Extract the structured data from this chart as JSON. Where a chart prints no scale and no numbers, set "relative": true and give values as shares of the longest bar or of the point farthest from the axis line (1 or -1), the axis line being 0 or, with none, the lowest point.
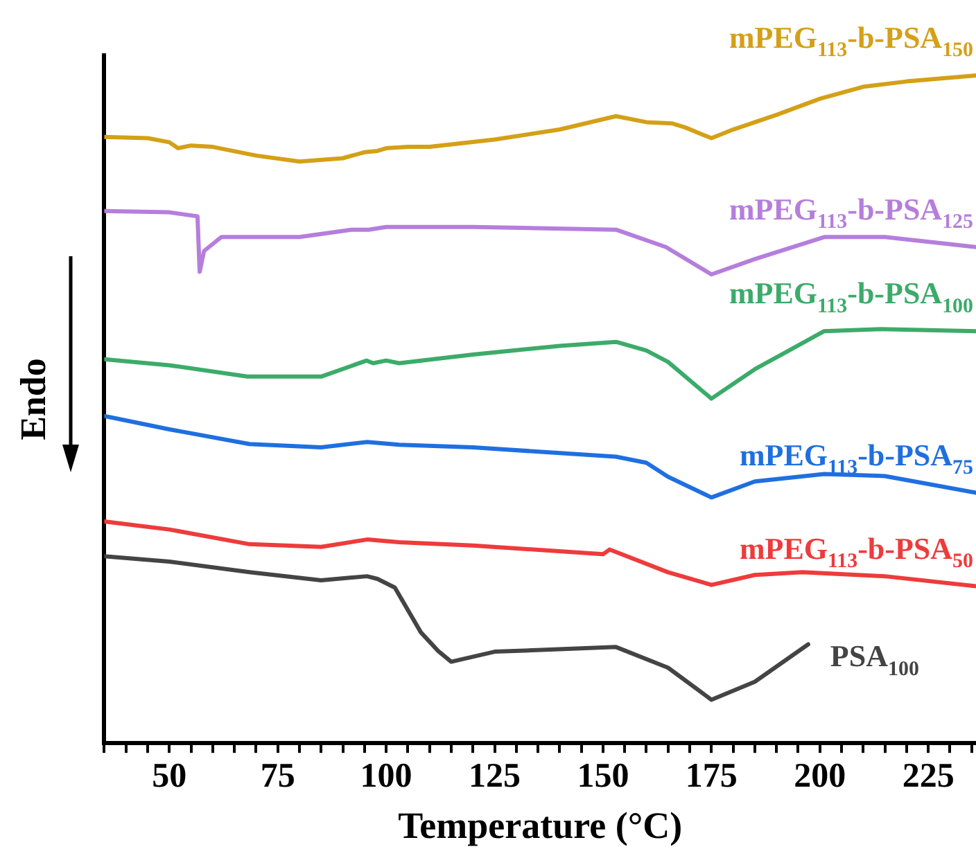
{
  "chart_data": {
    "type": "line",
    "relative": true,
    "xlabel": "Temperature (°C)",
    "ylabel": "Endo",
    "xlim": [
      35,
      236
    ],
    "xticks": [
      {
        "value": 35,
        "label": null
      },
      {
        "value": 40,
        "label": null
      },
      {
        "value": 45,
        "label": null
      },
      50,
      {
        "value": 55,
        "label": null
      },
      {
        "value": 60,
        "label": null
      },
      {
        "value": 65,
        "label": null
      },
      {
        "value": 70,
        "label": null
      },
      75,
      {
        "value": 80,
        "label": null
      },
      {
        "value": 85,
        "label": null
      },
      {
        "value": 90,
        "label": null
      },
      {
        "value": 95,
        "label": null
      },
      100,
      {
        "value": 105,
        "label": null
      },
      {
        "value": 110,
        "label": null
      },
      {
        "value": 115,
        "label": null
      },
      {
        "value": 120,
        "label": null
      },
      125,
      {
        "value": 130,
        "label": null
      },
      {
        "value": 135,
        "label": null
      },
      {
        "value": 140,
        "label": null
      },
      {
        "value": 145,
        "label": null
      },
      150,
      {
        "value": 155,
        "label": null
      },
      {
        "value": 160,
        "label": null
      },
      {
        "value": 165,
        "label": null
      },
      {
        "value": 170,
        "label": null
      },
      175,
      {
        "value": 180,
        "label": null
      },
      {
        "value": 185,
        "label": null
      },
      {
        "value": 190,
        "label": null
      },
      {
        "value": 195,
        "label": null
      },
      200,
      {
        "value": 205,
        "label": null
      },
      {
        "value": 210,
        "label": null
      },
      {
        "value": 215,
        "label": null
      },
      {
        "value": 220,
        "label": null
      },
      225,
      {
        "value": 230,
        "label": null
      },
      {
        "value": 235,
        "label": null
      }
    ],
    "grid": false,
    "legend": false,
    "marker": "none",
    "line_style": "solid",
    "series": [
      {
        "name": "mPEG$_{113}$-b-PSA$_{150}$",
        "color": "#d4a017",
        "x": [
          35,
          45,
          50,
          52,
          55,
          60,
          70,
          80,
          90,
          95,
          98,
          100,
          105,
          110,
          125,
          140,
          153,
          160,
          166,
          169,
          175,
          180,
          190,
          200,
          210,
          220,
          236
        ],
        "values": [
          0.908,
          0.906,
          0.9,
          0.891,
          0.895,
          0.893,
          0.88,
          0.871,
          0.876,
          0.885,
          0.887,
          0.891,
          0.893,
          0.893,
          0.904,
          0.919,
          0.939,
          0.93,
          0.928,
          0.922,
          0.906,
          0.919,
          0.941,
          0.965,
          0.983,
          0.991,
          1
        ]
      },
      {
        "name": "mPEG$_{113}$-b-PSA$_{125}$",
        "color": "#b57edc",
        "x": [
          35,
          50,
          56.5,
          57,
          58,
          62,
          80,
          92,
          96,
          100,
          120,
          153,
          164.5,
          175,
          185,
          201,
          215,
          236
        ],
        "values": [
          0.797,
          0.795,
          0.789,
          0.706,
          0.737,
          0.758,
          0.758,
          0.769,
          0.769,
          0.773,
          0.773,
          0.769,
          0.743,
          0.702,
          0.725,
          0.758,
          0.758,
          0.743
        ]
      },
      {
        "name": "mPEG$_{113}$-b-PSA$_{100}$",
        "color": "#3cab6a",
        "x": [
          35,
          50,
          68,
          85,
          95.5,
          97,
          100,
          103,
          120,
          140,
          153,
          160,
          165,
          175,
          185,
          201,
          214,
          236
        ],
        "values": [
          0.575,
          0.566,
          0.549,
          0.549,
          0.573,
          0.569,
          0.573,
          0.569,
          0.582,
          0.595,
          0.601,
          0.588,
          0.571,
          0.516,
          0.56,
          0.617,
          0.62,
          0.617
        ]
      },
      {
        "name": "mPEG$_{113}$-b-PSA$_{75}$",
        "color": "#1f6fe0",
        "x": [
          35,
          50,
          68.5,
          85,
          95.6,
          103,
          120,
          153,
          160,
          165,
          175,
          185,
          201,
          215,
          236
        ],
        "values": [
          0.49,
          0.47,
          0.448,
          0.443,
          0.451,
          0.447,
          0.443,
          0.429,
          0.42,
          0.399,
          0.368,
          0.392,
          0.403,
          0.4,
          0.375
        ]
      },
      {
        "name": "mPEG$_{113}$-b-PSA$_{50}$",
        "color": "#ee3b3b",
        "x": [
          35,
          50,
          68.5,
          85,
          95.6,
          103,
          120,
          150,
          151.5,
          165,
          175,
          185,
          196,
          215,
          236
        ],
        "values": [
          0.332,
          0.32,
          0.298,
          0.294,
          0.305,
          0.301,
          0.296,
          0.283,
          0.29,
          0.256,
          0.237,
          0.252,
          0.256,
          0.25,
          0.235
        ]
      },
      {
        "name": "PSA$_{100}$",
        "color": "#444444",
        "x": [
          35,
          50,
          68.5,
          85,
          95.6,
          98,
          102,
          108,
          112,
          115,
          125,
          153,
          165,
          175,
          185,
          197.3
        ],
        "values": [
          0.28,
          0.272,
          0.256,
          0.244,
          0.25,
          0.246,
          0.233,
          0.166,
          0.138,
          0.122,
          0.137,
          0.144,
          0.113,
          0.065,
          0.092,
          0.148
        ]
      }
    ]
  }
}
